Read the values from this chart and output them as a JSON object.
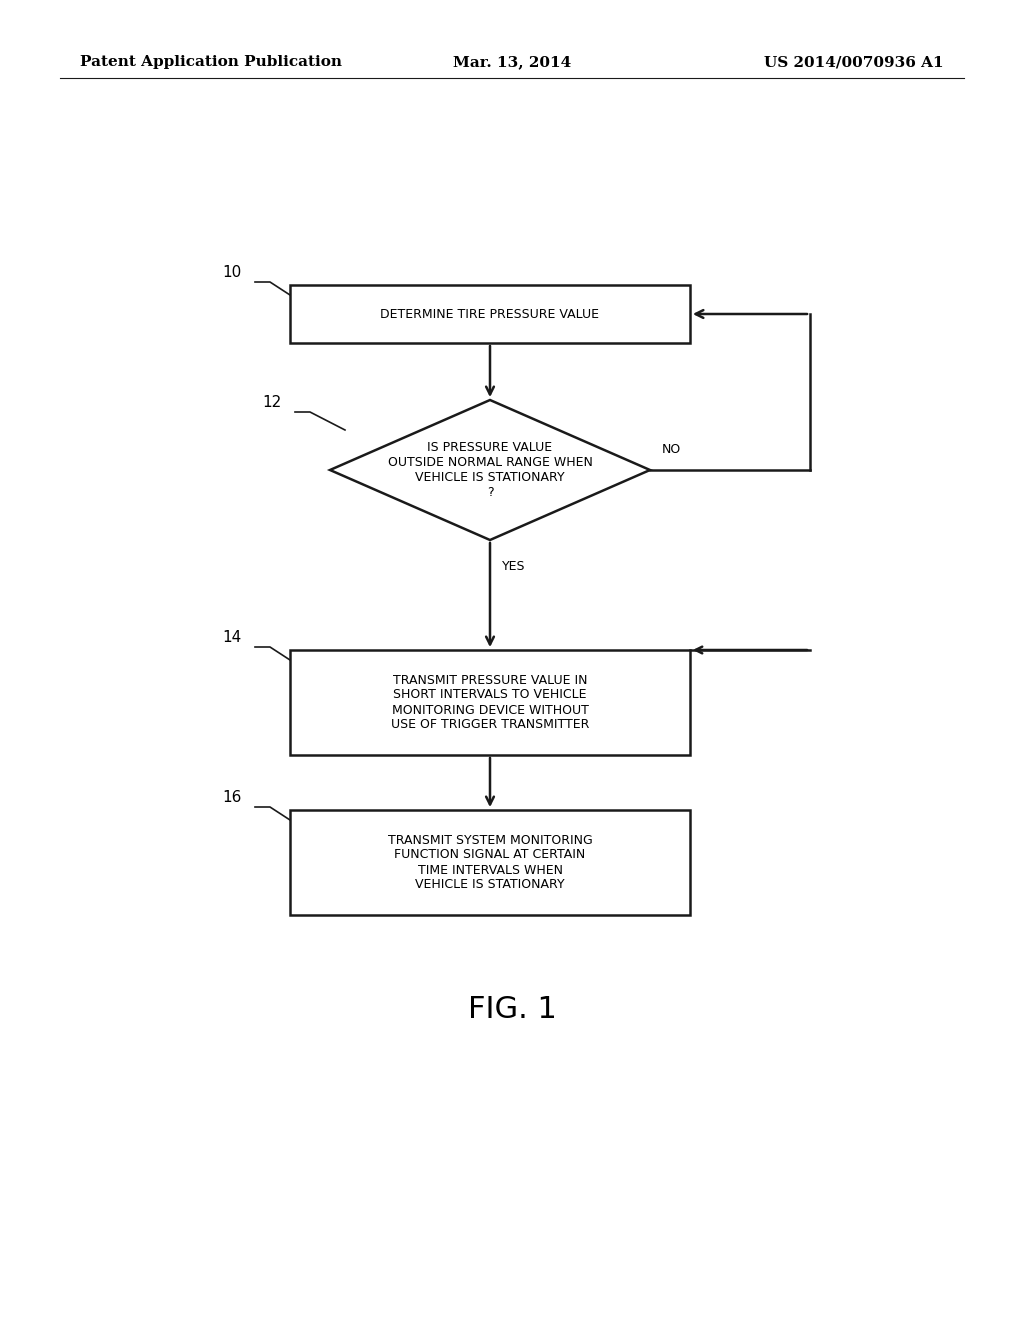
{
  "bg_color": "#ffffff",
  "header_left": "Patent Application Publication",
  "header_center": "Mar. 13, 2014",
  "header_right": "US 2014/0070936 A1",
  "fig_label": "FIG. 1",
  "box1_text": "DETERMINE TIRE PRESSURE VALUE",
  "box1_label": "10",
  "diamond_text": "IS PRESSURE VALUE\nOUTSIDE NORMAL RANGE WHEN\nVEHICLE IS STATIONARY\n?",
  "diamond_label": "12",
  "box2_text": "TRANSMIT PRESSURE VALUE IN\nSHORT INTERVALS TO VEHICLE\nMONITORING DEVICE WITHOUT\nUSE OF TRIGGER TRANSMITTER",
  "box2_label": "14",
  "box3_text": "TRANSMIT SYSTEM MONITORING\nFUNCTION SIGNAL AT CERTAIN\nTIME INTERVALS WHEN\nVEHICLE IS STATIONARY",
  "box3_label": "16",
  "text_fontsize": 9.0,
  "label_fontsize": 11,
  "header_fontsize": 11,
  "fig_label_fontsize": 22,
  "line_color": "#1a1a1a",
  "line_width": 1.8
}
